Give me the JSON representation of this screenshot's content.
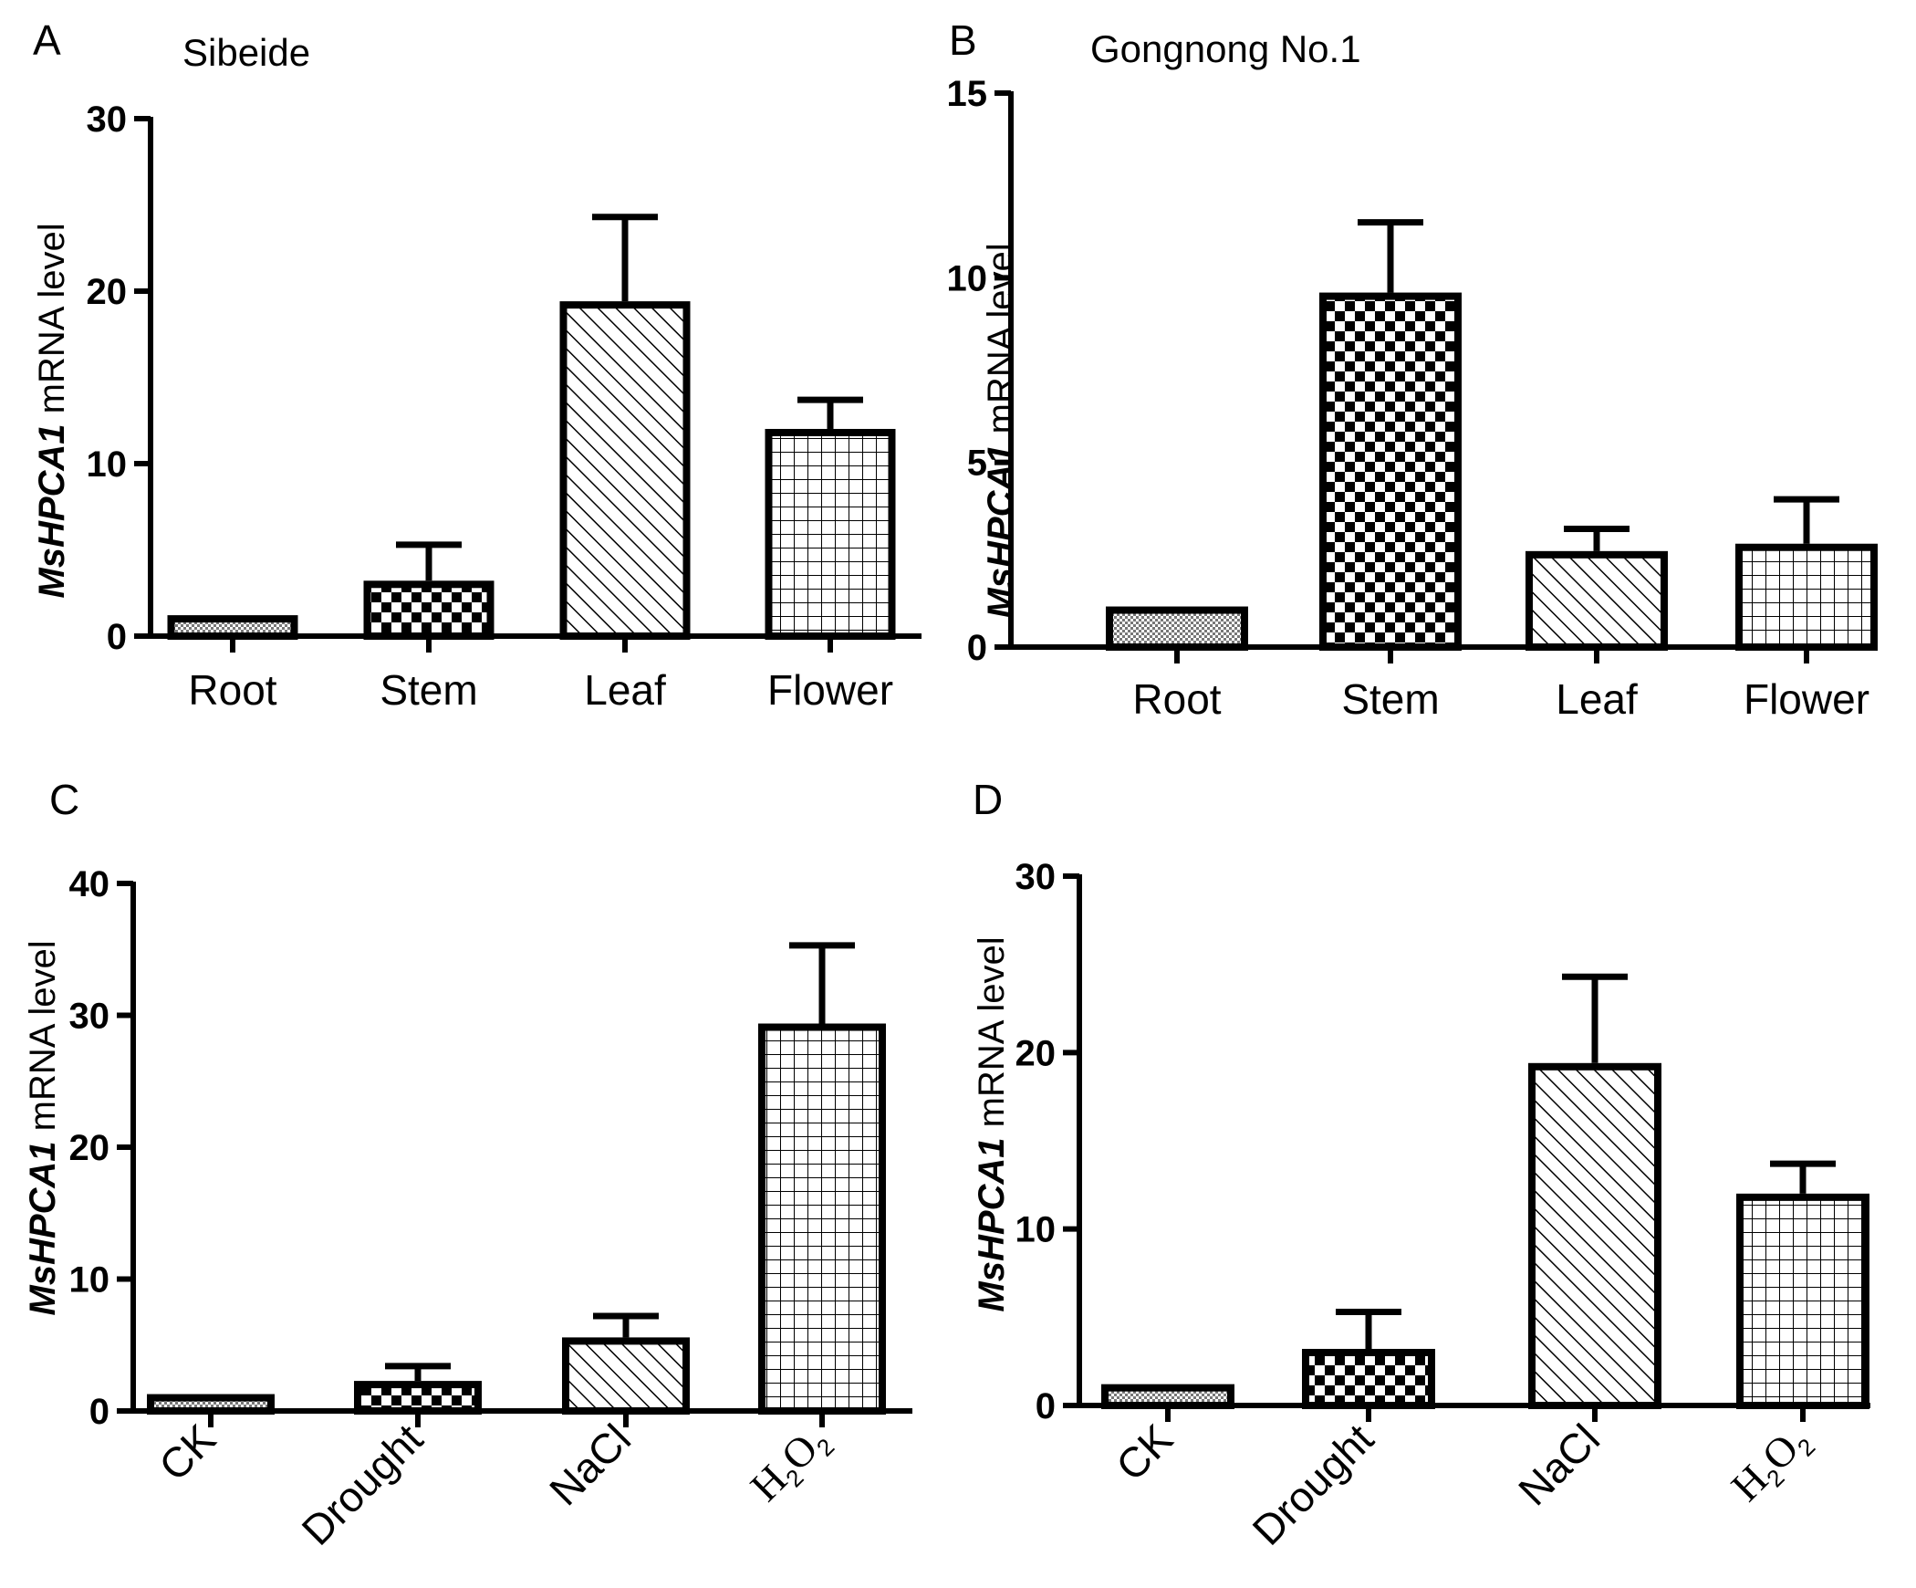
{
  "chart_data": [
    {
      "type": "bar",
      "panel": "A",
      "title": "Sibeide",
      "ylabel_italic": "MsHPCA1",
      "ylabel_rest": " mRNA level",
      "ylim": [
        0,
        30
      ],
      "yticks": [
        "0",
        "10",
        "20",
        "30"
      ],
      "categories": [
        "Root",
        "Stem",
        "Leaf",
        "Flower"
      ],
      "values": [
        1.0,
        3.0,
        19.2,
        11.8
      ],
      "errors": [
        0.0,
        2.3,
        5.1,
        1.9
      ],
      "patterns": [
        "fine",
        "checker",
        "diag",
        "grid"
      ]
    },
    {
      "type": "bar",
      "panel": "B",
      "title": "Gongnong No.1",
      "ylabel_italic": "MsHPCA1",
      "ylabel_rest": " mRNA level",
      "ylim": [
        0,
        15
      ],
      "yticks": [
        "0",
        "5",
        "10",
        "15"
      ],
      "categories": [
        "Root",
        "Stem",
        "Leaf",
        "Flower"
      ],
      "values": [
        1.0,
        9.5,
        2.5,
        2.7
      ],
      "errors": [
        0.0,
        2.0,
        0.7,
        1.3
      ],
      "patterns": [
        "fine",
        "checker",
        "diag",
        "grid"
      ]
    },
    {
      "type": "bar",
      "panel": "C",
      "title": "",
      "ylabel_italic": "MsHPCA1",
      "ylabel_rest": " mRNA level",
      "ylim": [
        0,
        40
      ],
      "yticks": [
        "0",
        "10",
        "20",
        "30",
        "40"
      ],
      "categories": [
        "CK",
        "Drought",
        "NaCl",
        "H2O2"
      ],
      "values": [
        1.0,
        2.0,
        5.3,
        29.1
      ],
      "errors": [
        0.0,
        1.4,
        1.9,
        6.2
      ],
      "patterns": [
        "fine",
        "checker",
        "diag",
        "grid"
      ]
    },
    {
      "type": "bar",
      "panel": "D",
      "title": "",
      "ylabel_italic": "MsHPCA1",
      "ylabel_rest": " mRNA level",
      "ylim": [
        0,
        30
      ],
      "yticks": [
        "0",
        "10",
        "20",
        "30"
      ],
      "categories": [
        "CK",
        "Drought",
        "NaCl",
        "H2O2"
      ],
      "values": [
        1.0,
        3.0,
        19.2,
        11.8
      ],
      "errors": [
        0.0,
        2.3,
        5.1,
        1.9
      ],
      "patterns": [
        "fine",
        "checker",
        "diag",
        "grid"
      ]
    }
  ]
}
